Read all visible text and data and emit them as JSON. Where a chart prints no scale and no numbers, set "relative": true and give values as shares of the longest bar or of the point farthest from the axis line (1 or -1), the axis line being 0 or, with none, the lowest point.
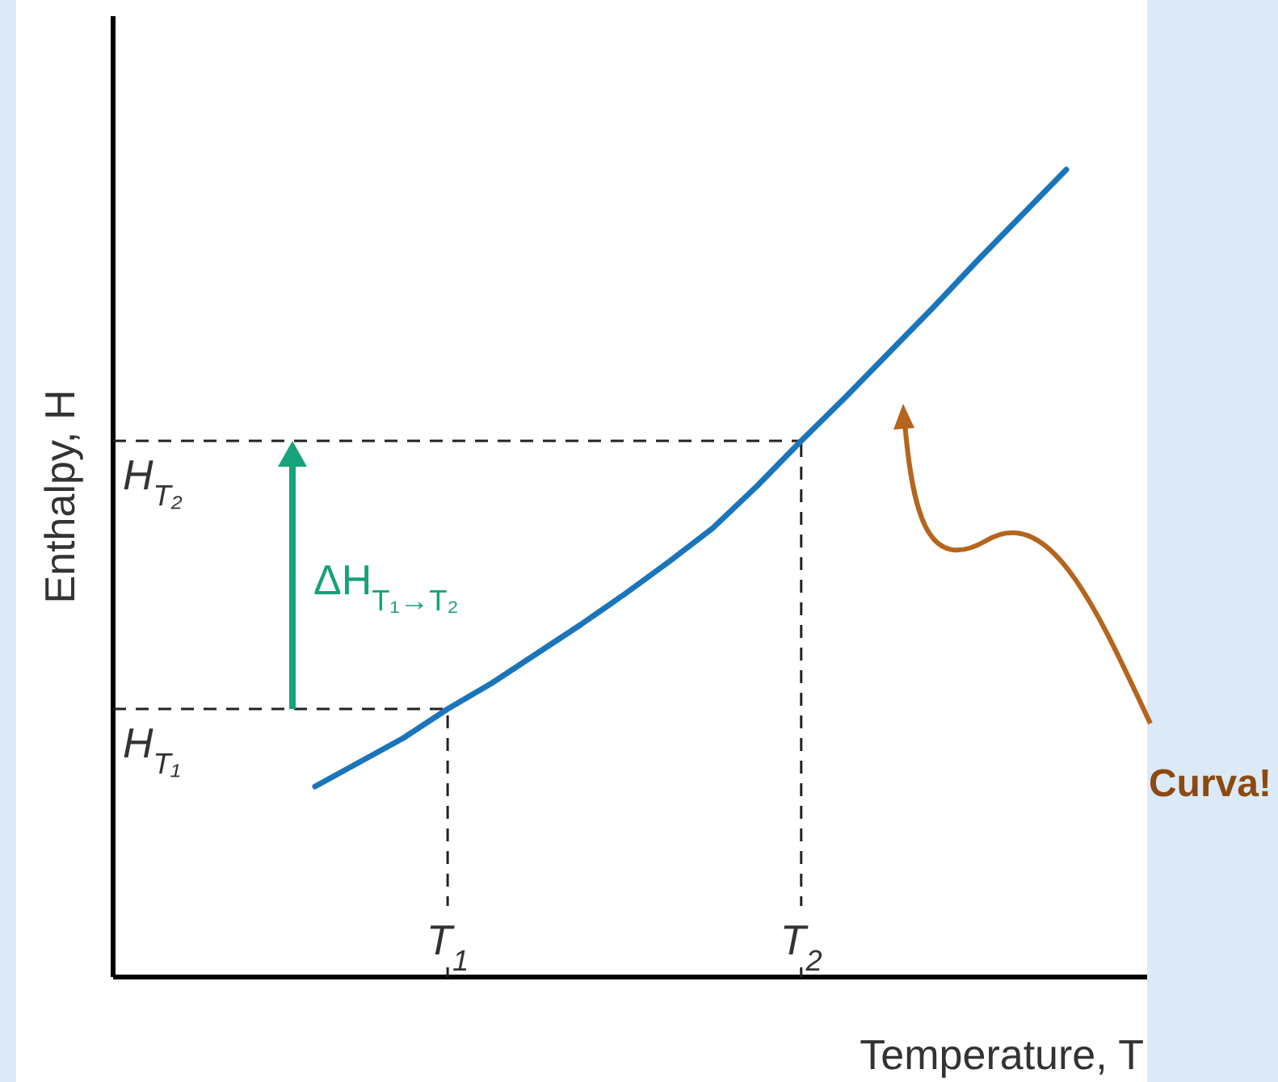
{
  "chart_data": {
    "type": "line",
    "xlabel": "Temperature, T",
    "ylabel": "Enthalpy, H",
    "relative": true,
    "tick_labels": "x",
    "categories": [
      null,
      null,
      null,
      "T$_{1}$",
      null,
      null,
      null,
      null,
      null,
      null,
      null,
      "T$_{2}$",
      null,
      null,
      null,
      null,
      null,
      null
    ],
    "series": [
      {
        "color": "#1a75bb",
        "values": [
          0.236,
          0.266,
          0.296,
          0.332,
          0.364,
          0.4,
          0.436,
          0.474,
          0.514,
          0.556,
          0.608,
          0.664,
          0.718,
          0.774,
          0.83,
          0.888,
          0.944,
          1
        ]
      }
    ],
    "ref_lines": [
      {
        "axis": "y",
        "value": 0.332,
        "label": "H$_{T₁}$",
        "line_style": "dashed"
      },
      {
        "axis": "y",
        "value": 0.664,
        "label": "H$_{T₂}$",
        "line_style": "dashed"
      },
      {
        "axis": "x",
        "value": "T$_{1}$",
        "line_style": "dashed"
      },
      {
        "axis": "x",
        "value": "T$_{2}$",
        "line_style": "dashed"
      }
    ],
    "annotations": [
      "ΔH$_{T₁→T₂}$",
      "Curva!"
    ]
  }
}
